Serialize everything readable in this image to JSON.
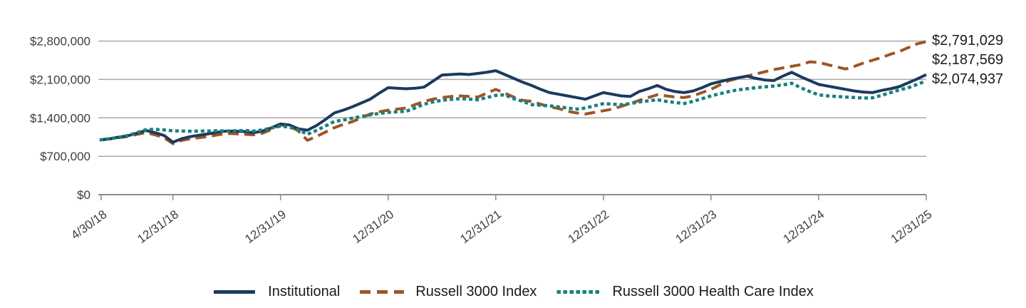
{
  "chart_data": {
    "type": "line",
    "title": "",
    "xlabel": "",
    "ylabel": "",
    "x_start_date": "4/30/18",
    "x_end_date": "12/31/25",
    "total_months": 92,
    "x_tick_labels": [
      "4/30/18",
      "12/31/18",
      "12/31/19",
      "12/31/20",
      "12/31/21",
      "12/31/22",
      "12/31/23",
      "12/31/24",
      "12/31/25"
    ],
    "x_tick_months": [
      0,
      8,
      20,
      32,
      44,
      56,
      68,
      80,
      92
    ],
    "y_ticks": [
      0,
      700000,
      1400000,
      2100000,
      2800000
    ],
    "y_tick_labels": [
      "$0",
      "$700,000",
      "$1,400,000",
      "$2,100,000",
      "$2,800,000"
    ],
    "ylim": [
      0,
      2800000
    ],
    "grid": "horizontal",
    "legend_position": "bottom",
    "draw_order": [
      1,
      0,
      2
    ],
    "grid_color": "#a8a8a8",
    "axis_color": "#8c8c8c",
    "series": [
      {
        "name": "Institutional",
        "color": "#1B3A5F",
        "line_style": "solid",
        "end_label": "$2,187,569",
        "final_value": 2187569,
        "values": [
          1000000,
          1020000,
          1050000,
          1075000,
          1120000,
          1170000,
          1130000,
          1080000,
          955000,
          1020000,
          1060000,
          1085000,
          1110000,
          1140000,
          1160000,
          1155000,
          1150000,
          1130000,
          1160000,
          1220000,
          1290000,
          1270000,
          1200000,
          1175000,
          1260000,
          1370000,
          1490000,
          1540000,
          1600000,
          1670000,
          1740000,
          1850000,
          1950000,
          1940000,
          1930000,
          1940000,
          1960000,
          2070000,
          2180000,
          2190000,
          2200000,
          2190000,
          2210000,
          2230000,
          2260000,
          2190000,
          2120000,
          2050000,
          1990000,
          1920000,
          1860000,
          1830000,
          1800000,
          1770000,
          1740000,
          1800000,
          1860000,
          1830000,
          1800000,
          1790000,
          1880000,
          1930000,
          1990000,
          1920000,
          1880000,
          1860000,
          1890000,
          1950000,
          2020000,
          2060000,
          2100000,
          2130000,
          2160000,
          2120000,
          2090000,
          2080000,
          2160000,
          2230000,
          2150000,
          2080000,
          2010000,
          1980000,
          1950000,
          1920000,
          1890000,
          1870000,
          1860000,
          1900000,
          1930000,
          1970000,
          2040000,
          2110000,
          2187569
        ]
      },
      {
        "name": "Russell 3000 Index",
        "color": "#9E5526",
        "line_style": "dashed",
        "end_label": "$2,791,029",
        "final_value": 2791029,
        "values": [
          1000000,
          1015000,
          1040000,
          1060000,
          1100000,
          1130000,
          1090000,
          1040000,
          930000,
          990000,
          1020000,
          1040000,
          1060000,
          1090000,
          1115000,
          1110000,
          1100000,
          1090000,
          1120000,
          1190000,
          1270000,
          1250000,
          1160000,
          990000,
          1060000,
          1140000,
          1220000,
          1280000,
          1330000,
          1400000,
          1470000,
          1510000,
          1540000,
          1560000,
          1580000,
          1640000,
          1700000,
          1740000,
          1770000,
          1790000,
          1800000,
          1790000,
          1780000,
          1850000,
          1920000,
          1850000,
          1780000,
          1720000,
          1700000,
          1650000,
          1600000,
          1570000,
          1520000,
          1490000,
          1470000,
          1500000,
          1530000,
          1560000,
          1610000,
          1660000,
          1720000,
          1770000,
          1820000,
          1800000,
          1780000,
          1770000,
          1800000,
          1860000,
          1920000,
          2000000,
          2080000,
          2120000,
          2160000,
          2200000,
          2240000,
          2280000,
          2310000,
          2340000,
          2370000,
          2420000,
          2410000,
          2370000,
          2330000,
          2290000,
          2340000,
          2400000,
          2450000,
          2500000,
          2560000,
          2610000,
          2680000,
          2750000,
          2791029
        ]
      },
      {
        "name": "Russell 3000 Health Care Index",
        "color": "#17817E",
        "line_style": "dotted",
        "end_label": "$2,074,937",
        "final_value": 2074937,
        "values": [
          1000000,
          1020000,
          1045000,
          1080000,
          1130000,
          1185000,
          1190000,
          1180000,
          1165000,
          1160000,
          1155000,
          1160000,
          1160000,
          1165000,
          1160000,
          1165000,
          1170000,
          1160000,
          1180000,
          1215000,
          1250000,
          1230000,
          1180000,
          1100000,
          1170000,
          1250000,
          1335000,
          1360000,
          1395000,
          1425000,
          1455000,
          1480000,
          1500000,
          1510000,
          1520000,
          1580000,
          1650000,
          1690000,
          1720000,
          1735000,
          1750000,
          1740000,
          1730000,
          1770000,
          1810000,
          1820000,
          1750000,
          1700000,
          1640000,
          1630000,
          1620000,
          1600000,
          1580000,
          1560000,
          1580000,
          1620000,
          1660000,
          1650000,
          1640000,
          1660000,
          1690000,
          1710000,
          1730000,
          1700000,
          1680000,
          1660000,
          1700000,
          1750000,
          1800000,
          1840000,
          1880000,
          1910000,
          1930000,
          1950000,
          1965000,
          1980000,
          2000000,
          2030000,
          1950000,
          1880000,
          1820000,
          1800000,
          1790000,
          1780000,
          1770000,
          1760000,
          1765000,
          1810000,
          1860000,
          1910000,
          1950000,
          2010000,
          2074937
        ]
      }
    ],
    "end_labels_top_to_bottom": [
      "$2,791,029",
      "$2,187,569",
      "$2,074,937"
    ]
  },
  "legend": {
    "items": [
      {
        "label": "Institutional"
      },
      {
        "label": "Russell 3000 Index"
      },
      {
        "label": "Russell 3000 Health Care Index"
      }
    ]
  }
}
